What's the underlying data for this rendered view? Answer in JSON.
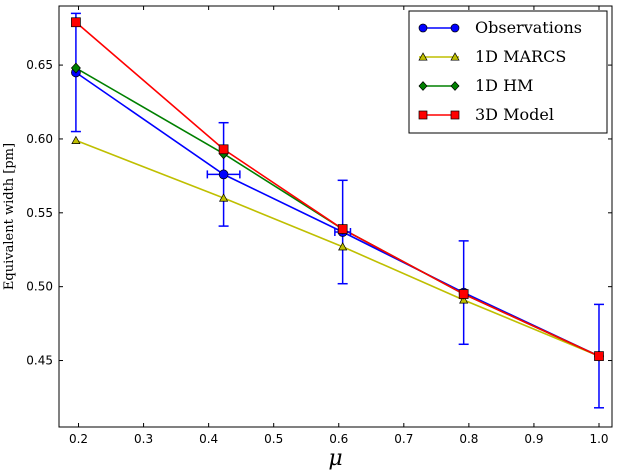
{
  "chart_data": {
    "type": "line",
    "xlabel": "μ",
    "ylabel": "Equivalent width [pm]",
    "xlim": [
      0.17,
      1.02
    ],
    "ylim": [
      0.405,
      0.69
    ],
    "xticks": [
      "0.2",
      "0.3",
      "0.4",
      "0.5",
      "0.6",
      "0.7",
      "0.8",
      "0.9",
      "1.0"
    ],
    "yticks": [
      "0.45",
      "0.50",
      "0.55",
      "0.60",
      "0.65"
    ],
    "grid": false,
    "legend_position": "top-right",
    "series": [
      {
        "name": "Observations",
        "color": "#0000ff",
        "marker": "circle",
        "x": [
          0.196,
          0.423,
          0.606,
          0.792,
          1.0
        ],
        "y": [
          0.645,
          0.576,
          0.537,
          0.496,
          0.453
        ],
        "yerr": [
          0.04,
          0.035,
          0.035,
          0.035,
          0.035
        ],
        "xerr": [
          0.0,
          0.025,
          0.012,
          0.0,
          0.0
        ]
      },
      {
        "name": "1D MARCS",
        "color": "#bfbf00",
        "marker": "triangle",
        "x": [
          0.196,
          0.423,
          0.606,
          0.792,
          1.0
        ],
        "y": [
          0.599,
          0.56,
          0.527,
          0.491,
          0.453
        ]
      },
      {
        "name": "1D HM",
        "color": "#008000",
        "marker": "diamond",
        "x": [
          0.196,
          0.423,
          0.606,
          0.792,
          1.0
        ],
        "y": [
          0.648,
          0.59,
          0.539,
          0.495,
          0.453
        ]
      },
      {
        "name": "3D Model",
        "color": "#ff0000",
        "marker": "square",
        "x": [
          0.196,
          0.423,
          0.606,
          0.792,
          1.0
        ],
        "y": [
          0.679,
          0.593,
          0.539,
          0.495,
          0.453
        ]
      }
    ]
  }
}
